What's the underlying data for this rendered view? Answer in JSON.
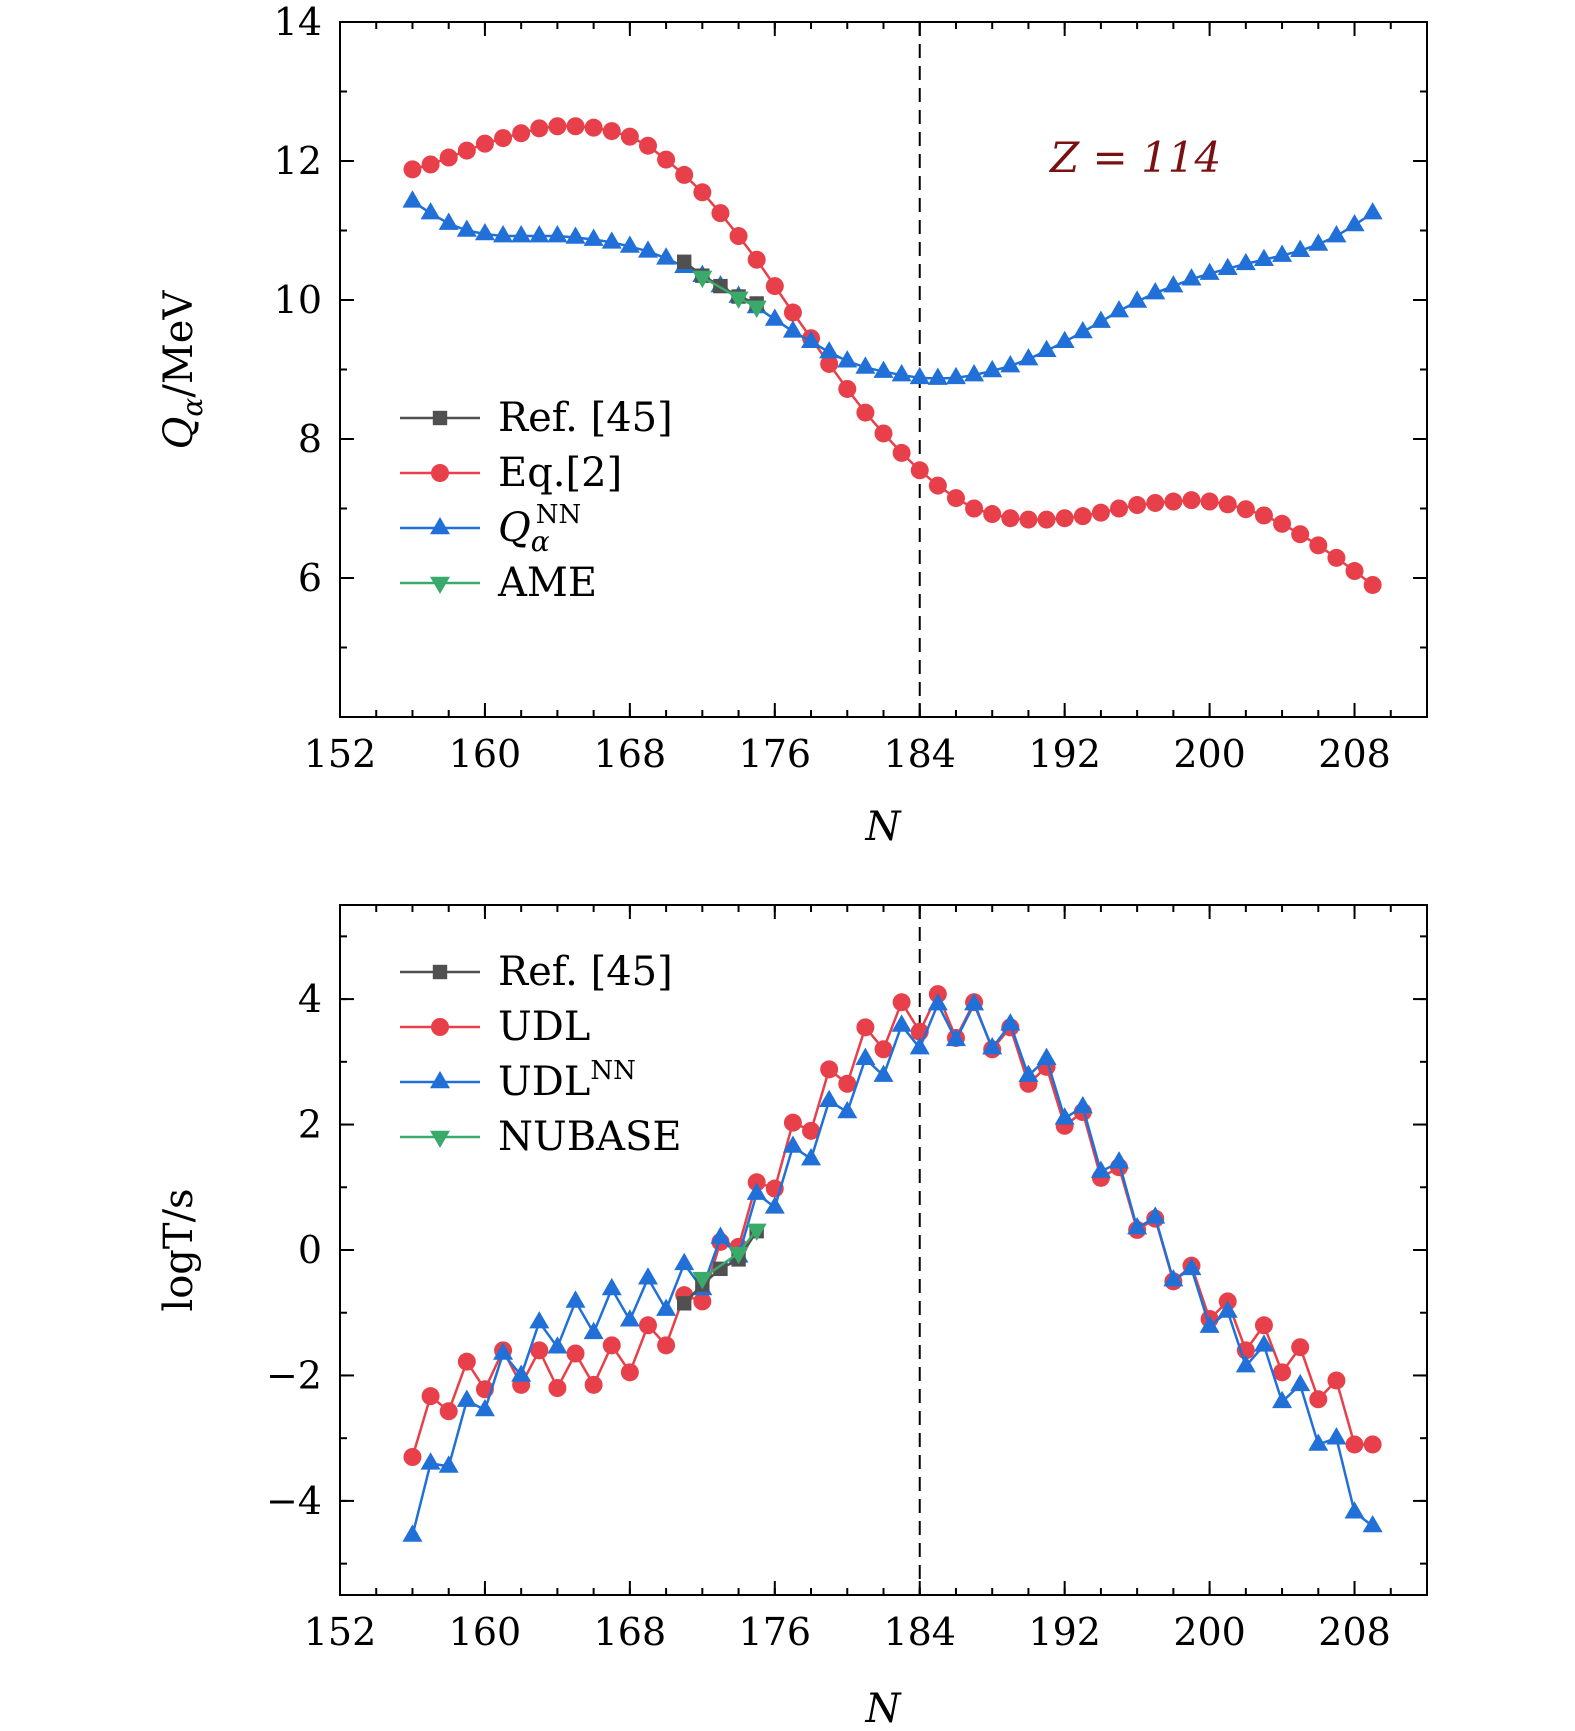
{
  "chart_data": [
    {
      "type": "line",
      "xlabel": "N",
      "ylabel_main": "Q",
      "ylabel_sub": "α",
      "ylabel_rest": "/MeV",
      "xlim": [
        152,
        212
      ],
      "ylim": [
        4,
        14
      ],
      "xticks": [
        "152",
        "160",
        "168",
        "176",
        "184",
        "192",
        "200",
        "208"
      ],
      "yticks": [
        "6",
        "8",
        "10",
        "12",
        "14"
      ],
      "annotation": "Z = 114",
      "reference_line_x": 184,
      "legend_placement": "lower-left",
      "series": [
        {
          "name": "Ref. [45]",
          "color": "#505050",
          "marker": "square",
          "x": [
            171,
            172,
            173,
            174,
            175
          ],
          "y": [
            10.55,
            10.35,
            10.2,
            10.05,
            9.95
          ]
        },
        {
          "name": "Eq.[2]",
          "color": "#e8404a",
          "marker": "circle",
          "x": [
            156,
            157,
            158,
            159,
            160,
            161,
            162,
            163,
            164,
            165,
            166,
            167,
            168,
            169,
            170,
            171,
            172,
            173,
            174,
            175,
            176,
            177,
            178,
            179,
            180,
            181,
            182,
            183,
            184,
            185,
            186,
            187,
            188,
            189,
            190,
            191,
            192,
            193,
            194,
            195,
            196,
            197,
            198,
            199,
            200,
            201,
            202,
            203,
            204,
            205,
            206,
            207,
            208,
            209
          ],
          "y": [
            11.88,
            11.95,
            12.05,
            12.15,
            12.25,
            12.33,
            12.4,
            12.47,
            12.5,
            12.5,
            12.48,
            12.43,
            12.35,
            12.22,
            12.02,
            11.8,
            11.55,
            11.25,
            10.92,
            10.58,
            10.2,
            9.82,
            9.45,
            9.08,
            8.72,
            8.38,
            8.08,
            7.8,
            7.55,
            7.33,
            7.15,
            7.0,
            6.92,
            6.86,
            6.84,
            6.84,
            6.86,
            6.89,
            6.94,
            7.0,
            7.05,
            7.08,
            7.1,
            7.12,
            7.1,
            7.06,
            6.99,
            6.9,
            6.78,
            6.63,
            6.47,
            6.29,
            6.1,
            5.9
          ]
        },
        {
          "name": "Q",
          "name_sub": "α",
          "name_sup": "NN",
          "color": "#2070d8",
          "marker": "triangle-up",
          "x": [
            156,
            157,
            158,
            159,
            160,
            161,
            162,
            163,
            164,
            165,
            166,
            167,
            168,
            169,
            170,
            171,
            172,
            173,
            174,
            175,
            176,
            177,
            178,
            179,
            180,
            181,
            182,
            183,
            184,
            185,
            186,
            187,
            188,
            189,
            190,
            191,
            192,
            193,
            194,
            195,
            196,
            197,
            198,
            199,
            200,
            201,
            202,
            203,
            204,
            205,
            206,
            207,
            208,
            209
          ],
          "y": [
            11.42,
            11.25,
            11.1,
            11.0,
            10.95,
            10.92,
            10.92,
            10.92,
            10.92,
            10.9,
            10.87,
            10.83,
            10.77,
            10.7,
            10.6,
            10.48,
            10.35,
            10.2,
            10.05,
            9.9,
            9.72,
            9.55,
            9.4,
            9.25,
            9.12,
            9.03,
            8.97,
            8.92,
            8.88,
            8.87,
            8.88,
            8.92,
            8.98,
            9.05,
            9.15,
            9.27,
            9.4,
            9.54,
            9.69,
            9.84,
            9.98,
            10.1,
            10.2,
            10.3,
            10.38,
            10.45,
            10.52,
            10.58,
            10.64,
            10.71,
            10.8,
            10.92,
            11.08,
            11.25
          ]
        },
        {
          "name": "AME",
          "color": "#3aaa6a",
          "marker": "triangle-down",
          "x": [
            172,
            174,
            175
          ],
          "y": [
            10.33,
            10.03,
            9.9
          ]
        }
      ],
      "legend": [
        "Ref. [45]",
        "Eq.[2]",
        "QNN",
        "AME"
      ]
    },
    {
      "type": "line",
      "xlabel": "N",
      "ylabel": "logT/s",
      "xlim": [
        152,
        212
      ],
      "ylim": [
        -5.5,
        5.5
      ],
      "xticks": [
        "152",
        "160",
        "168",
        "176",
        "184",
        "192",
        "200",
        "208"
      ],
      "yticks": [
        "−4",
        "−2",
        "0",
        "2",
        "4"
      ],
      "reference_line_x": 184,
      "legend_placement": "upper-left",
      "series": [
        {
          "name": "Ref. [45]",
          "color": "#505050",
          "marker": "square",
          "x": [
            171,
            172,
            173,
            174,
            175
          ],
          "y": [
            -0.85,
            -0.55,
            -0.3,
            -0.15,
            0.3
          ]
        },
        {
          "name": "UDL",
          "color": "#e8404a",
          "marker": "circle",
          "x": [
            156,
            157,
            158,
            159,
            160,
            161,
            162,
            163,
            164,
            165,
            166,
            167,
            168,
            169,
            170,
            171,
            172,
            173,
            174,
            175,
            176,
            177,
            178,
            179,
            180,
            181,
            182,
            183,
            184,
            185,
            186,
            187,
            188,
            189,
            190,
            191,
            192,
            193,
            194,
            195,
            196,
            197,
            198,
            199,
            200,
            201,
            202,
            203,
            204,
            205,
            206,
            207,
            208,
            209
          ],
          "y": [
            -3.3,
            -2.33,
            -2.57,
            -1.78,
            -2.22,
            -1.6,
            -2.15,
            -1.6,
            -2.2,
            -1.65,
            -2.15,
            -1.52,
            -1.95,
            -1.2,
            -1.52,
            -0.72,
            -0.82,
            0.13,
            0.05,
            1.08,
            0.98,
            2.03,
            1.9,
            2.88,
            2.65,
            3.55,
            3.2,
            3.95,
            3.48,
            4.08,
            3.38,
            3.95,
            3.2,
            3.55,
            2.65,
            2.92,
            1.98,
            2.2,
            1.15,
            1.32,
            0.32,
            0.5,
            -0.5,
            -0.25,
            -1.1,
            -0.82,
            -1.6,
            -1.2,
            -1.95,
            -1.55,
            -2.38,
            -2.08,
            -3.1,
            -3.1
          ]
        },
        {
          "name": "UDL",
          "name_sup": "NN",
          "color": "#2070d8",
          "marker": "triangle-up",
          "x": [
            156,
            157,
            158,
            159,
            160,
            161,
            162,
            163,
            164,
            165,
            166,
            167,
            168,
            169,
            170,
            171,
            172,
            173,
            174,
            175,
            176,
            177,
            178,
            179,
            180,
            181,
            182,
            183,
            184,
            185,
            186,
            187,
            188,
            189,
            190,
            191,
            192,
            193,
            194,
            195,
            196,
            197,
            198,
            199,
            200,
            201,
            202,
            203,
            204,
            205,
            206,
            207,
            208,
            209
          ],
          "y": [
            -4.55,
            -3.4,
            -3.45,
            -2.4,
            -2.55,
            -1.65,
            -2.0,
            -1.15,
            -1.55,
            -0.82,
            -1.32,
            -0.62,
            -1.12,
            -0.45,
            -0.95,
            -0.22,
            -0.62,
            0.2,
            -0.1,
            0.9,
            0.68,
            1.65,
            1.45,
            2.38,
            2.2,
            3.05,
            2.78,
            3.58,
            3.22,
            3.92,
            3.35,
            3.92,
            3.22,
            3.6,
            2.78,
            3.05,
            2.1,
            2.28,
            1.25,
            1.4,
            0.35,
            0.52,
            -0.48,
            -0.3,
            -1.22,
            -0.98,
            -1.85,
            -1.52,
            -2.42,
            -2.15,
            -3.1,
            -3.0,
            -4.18,
            -4.4
          ]
        },
        {
          "name": "NUBASE",
          "color": "#3aaa6a",
          "marker": "triangle-down",
          "x": [
            172,
            174,
            175
          ],
          "y": [
            -0.45,
            -0.05,
            0.32
          ]
        }
      ],
      "legend": [
        "Ref. [45]",
        "UDL",
        "UDLNN",
        "NUBASE"
      ]
    }
  ]
}
